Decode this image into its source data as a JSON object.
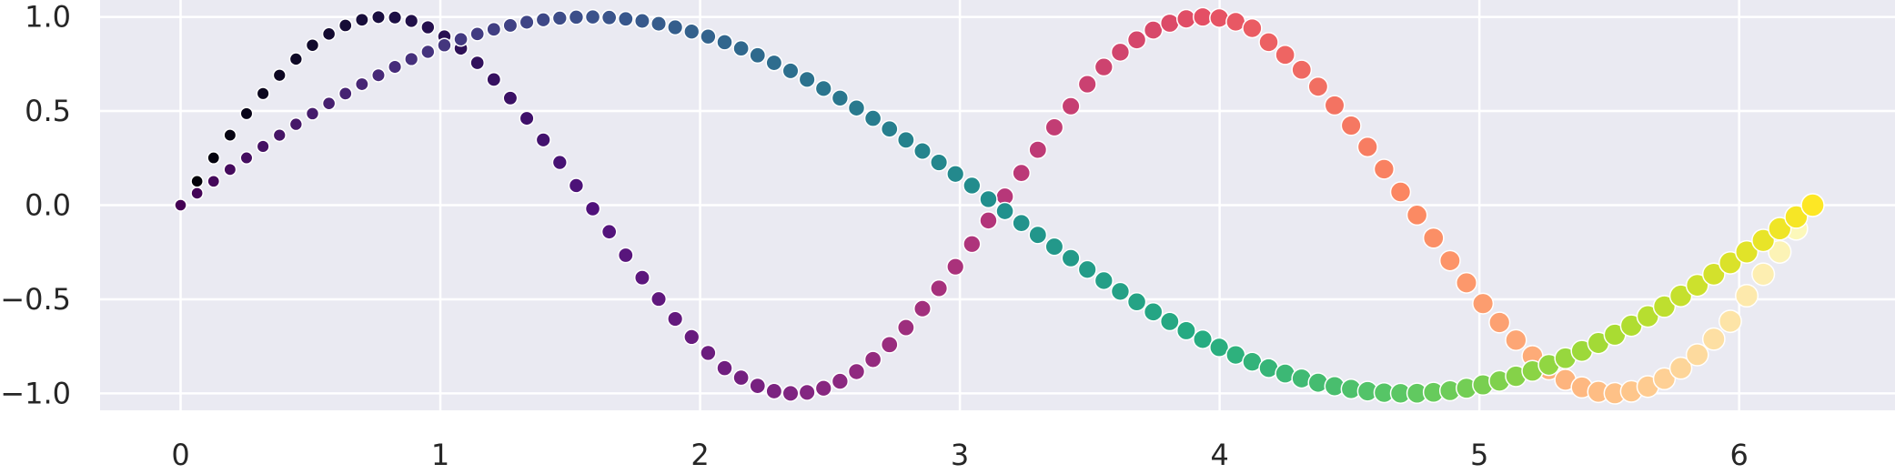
{
  "chart_data": {
    "type": "scatter",
    "title": "",
    "xlabel": "",
    "ylabel": "",
    "xlim": [
      -0.31,
      6.6
    ],
    "ylim": [
      -1.09,
      1.09
    ],
    "grid": true,
    "background": "#eaeaf2",
    "grid_color": "#ffffff",
    "x_ticks": [
      0,
      1,
      2,
      3,
      4,
      5,
      6
    ],
    "x_tick_labels": [
      "0",
      "1",
      "2",
      "3",
      "4",
      "5",
      "6"
    ],
    "y_ticks": [
      -1.0,
      -0.5,
      0.0,
      0.5,
      1.0
    ],
    "y_tick_labels": [
      "−1.0",
      "−0.5",
      "0.0",
      "0.5",
      "1.0"
    ],
    "series": [
      {
        "colormap": "magma",
        "formula": "y = sin(2x)",
        "x": [
          0.0,
          0.0634665,
          0.126933,
          0.1903996,
          0.2538661,
          0.3173326,
          0.3807991,
          0.4442656,
          0.5077321,
          0.5711987,
          0.6346652,
          0.6981317,
          0.7615982,
          0.8250647,
          0.8885313,
          0.9519978,
          1.0154643,
          1.0789308,
          1.1423973,
          1.2058638,
          1.2693304,
          1.3327969,
          1.3962634,
          1.4597299,
          1.5231964,
          1.5866629,
          1.6501295,
          1.713596,
          1.7770625,
          1.840529,
          1.9039955,
          1.967462,
          2.0309286,
          2.0943951,
          2.1578616,
          2.2213281,
          2.2847946,
          2.3482611,
          2.4117277,
          2.4751942,
          2.5386607,
          2.6021272,
          2.6655937,
          2.7290603,
          2.7925268,
          2.8559933,
          2.9194598,
          2.9829263,
          3.0463928,
          3.1098594,
          3.1733259,
          3.2367924,
          3.3002589,
          3.3637254,
          3.4271919,
          3.4906585,
          3.554125,
          3.6175915,
          3.681058,
          3.7445245,
          3.807991,
          3.8714576,
          3.9349241,
          3.9983906,
          4.0618571,
          4.1253236,
          4.1887902,
          4.2522567,
          4.3157232,
          4.3791897,
          4.4426562,
          4.5061227,
          4.5695893,
          4.6330558,
          4.6965223,
          4.7599888,
          4.8234553,
          4.8869218,
          4.9503884,
          5.0138549,
          5.0773214,
          5.1407879,
          5.2042544,
          5.2677209,
          5.3311875,
          5.394654,
          5.4581205,
          5.521587,
          5.5850535,
          5.6485201,
          5.7119866,
          5.7754531,
          5.8389196,
          5.9023861,
          5.9658526,
          6.0293192,
          6.0927857,
          6.1562522,
          6.2197187,
          6.2831853
        ],
        "y": [
          0.0,
          0.1266,
          0.2511,
          0.3717,
          0.4862,
          0.5929,
          0.6901,
          0.7761,
          0.8497,
          0.9096,
          0.9549,
          0.9848,
          0.9989,
          0.9969,
          0.9788,
          0.945,
          0.896,
          0.8327,
          0.7562,
          0.6678,
          0.5689,
          0.4612,
          0.3466,
          0.2269,
          0.1042,
          -0.019,
          -0.1414,
          -0.2658,
          -0.3852,
          -0.4987,
          -0.6044,
          -0.7005,
          -0.7851,
          -0.866,
          -0.9165,
          -0.9599,
          -0.9882,
          -0.9999,
          -0.9948,
          -0.973,
          -0.9358,
          -0.8844,
          -0.8202,
          -0.7411,
          -0.6503,
          -0.5499,
          -0.4418,
          -0.3271,
          -0.2066,
          -0.0815,
          0.0462,
          0.1709,
          0.2944,
          0.4135,
          0.5258,
          0.6428,
          0.7339,
          0.8127,
          0.8782,
          0.9301,
          0.9669,
          0.9897,
          0.9999,
          0.9945,
          0.9743,
          0.94,
          0.866,
          0.7983,
          0.7193,
          0.6295,
          0.5302,
          0.423,
          0.3094,
          0.1914,
          0.0701,
          -0.0525,
          -0.1746,
          -0.295,
          -0.4126,
          -0.5228,
          -0.6235,
          -0.717,
          -0.8015,
          -0.8725,
          -0.928,
          -0.9681,
          -0.9916,
          -0.9995,
          -0.9893,
          -0.9637,
          -0.9225,
          -0.866,
          -0.7949,
          -0.7115,
          -0.617,
          -0.4812,
          -0.367,
          -0.2481,
          -0.1253,
          0.0
        ]
      },
      {
        "colormap": "viridis",
        "formula": "y = sin(x)",
        "x": [
          0.0,
          0.0634665,
          0.126933,
          0.1903996,
          0.2538661,
          0.3173326,
          0.3807991,
          0.4442656,
          0.5077321,
          0.5711987,
          0.6346652,
          0.6981317,
          0.7615982,
          0.8250647,
          0.8885313,
          0.9519978,
          1.0154643,
          1.0789308,
          1.1423973,
          1.2058638,
          1.2693304,
          1.3327969,
          1.3962634,
          1.4597299,
          1.5231964,
          1.5866629,
          1.6501295,
          1.713596,
          1.7770625,
          1.840529,
          1.9039955,
          1.967462,
          2.0309286,
          2.0943951,
          2.1578616,
          2.2213281,
          2.2847946,
          2.3482611,
          2.4117277,
          2.4751942,
          2.5386607,
          2.6021272,
          2.6655937,
          2.7290603,
          2.7925268,
          2.8559933,
          2.9194598,
          2.9829263,
          3.0463928,
          3.1098594,
          3.1733259,
          3.2367924,
          3.3002589,
          3.3637254,
          3.4271919,
          3.4906585,
          3.554125,
          3.6175915,
          3.681058,
          3.7445245,
          3.807991,
          3.8714576,
          3.9349241,
          3.9983906,
          4.0618571,
          4.1253236,
          4.1887902,
          4.2522567,
          4.3157232,
          4.3791897,
          4.4426562,
          4.5061227,
          4.5695893,
          4.6330558,
          4.6965223,
          4.7599888,
          4.8234553,
          4.8869218,
          4.9503884,
          5.0138549,
          5.0773214,
          5.1407879,
          5.2042544,
          5.2677209,
          5.3311875,
          5.394654,
          5.4581205,
          5.521587,
          5.5850535,
          5.6485201,
          5.7119866,
          5.7754531,
          5.8389196,
          5.9023861,
          5.9658526,
          6.0293192,
          6.0927857,
          6.1562522,
          6.2197187,
          6.2831853
        ],
        "y": [
          0.0,
          0.0634,
          0.1266,
          0.1893,
          0.2511,
          0.312,
          0.3717,
          0.4298,
          0.4862,
          0.5406,
          0.5929,
          0.6428,
          0.6901,
          0.7346,
          0.7761,
          0.8146,
          0.8497,
          0.8815,
          0.9096,
          0.9342,
          0.9549,
          0.9718,
          0.9848,
          0.9938,
          0.9989,
          0.9999,
          0.9969,
          0.9898,
          0.9788,
          0.9638,
          0.945,
          0.9223,
          0.896,
          0.866,
          0.8327,
          0.7961,
          0.7562,
          0.7135,
          0.6678,
          0.6196,
          0.5689,
          0.5161,
          0.4612,
          0.4048,
          0.3466,
          0.2874,
          0.2269,
          0.1657,
          0.1042,
          0.0317,
          -0.0317,
          -0.0951,
          -0.158,
          -0.2203,
          -0.2817,
          -0.342,
          -0.4009,
          -0.4582,
          -0.5137,
          -0.5671,
          -0.6182,
          -0.6669,
          -0.7127,
          -0.7557,
          -0.7955,
          -0.8321,
          -0.866,
          -0.8946,
          -0.9206,
          -0.9433,
          -0.9618,
          -0.9766,
          -0.9883,
          -0.9963,
          -0.9997,
          -0.9992,
          -0.9942,
          -0.9854,
          -0.9724,
          -0.9546,
          -0.934,
          -0.909,
          -0.8806,
          -0.8486,
          -0.813,
          -0.7745,
          -0.7324,
          -0.6883,
          -0.6402,
          -0.5907,
          -0.5386,
          -0.4819,
          -0.426,
          -0.3666,
          -0.3066,
          -0.2486,
          -0.1875,
          -0.1249,
          -0.0627,
          0.0
        ]
      }
    ]
  }
}
